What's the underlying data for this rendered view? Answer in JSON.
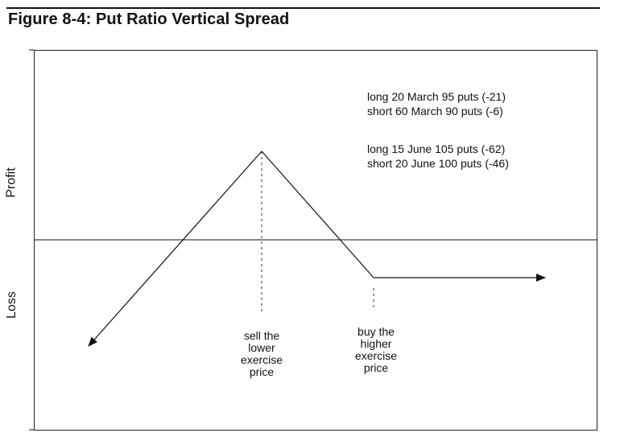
{
  "title": "Figure 8-4: Put Ratio Vertical Spread",
  "axis": {
    "upper_label": "Profit",
    "lower_label": "Loss"
  },
  "legend": [
    "long 20 March 95 puts (-21)",
    "short 60 March 90 puts (-6)",
    "long 15 June 105 puts (-62)",
    "short 20 June 100 puts (-46)"
  ],
  "annotations": {
    "lower_strike": [
      "sell the",
      "lower",
      "exercise",
      "price"
    ],
    "higher_strike": [
      "buy the",
      "higher",
      "exercise",
      "price"
    ]
  },
  "colors": {
    "ink": "#111111",
    "background": "#ffffff"
  }
}
